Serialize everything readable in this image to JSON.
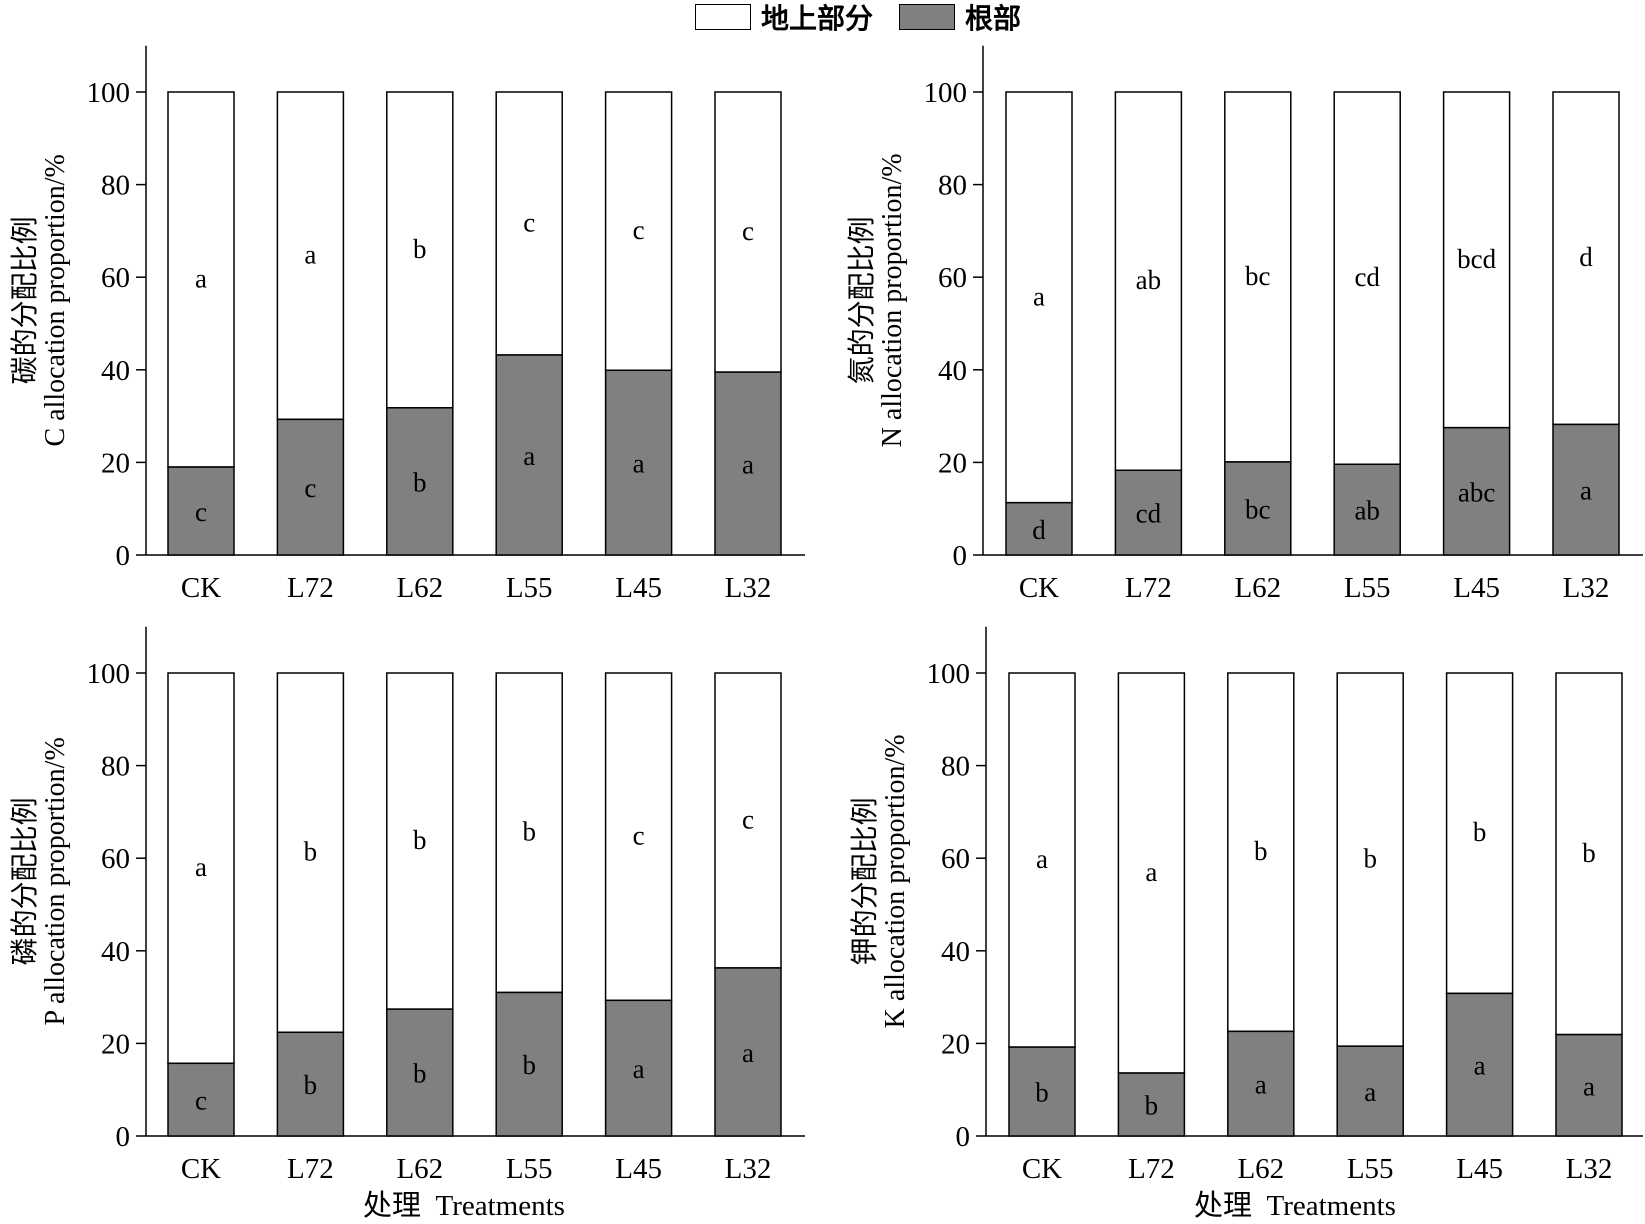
{
  "legend": {
    "aboveground_label": "地上部分",
    "root_label": "根部",
    "colors": {
      "aboveground": "#ffffff",
      "root": "#808080"
    }
  },
  "xtitle_cn": "处理",
  "xtitle_en": "Treatments",
  "chart_data": [
    {
      "type": "bar",
      "stacked": true,
      "ylabel_cn": "碳的分配比例",
      "ylabel_en": "C allocation proportion/%",
      "ylim": [
        0,
        110
      ],
      "yticks": [
        0,
        20,
        40,
        60,
        80,
        100
      ],
      "categories": [
        "CK",
        "L72",
        "L62",
        "L55",
        "L45",
        "L32"
      ],
      "series": [
        {
          "name": "根部",
          "values": [
            19,
            29.3,
            31.8,
            43.2,
            39.9,
            39.5
          ],
          "letters": [
            "c",
            "c",
            "b",
            "a",
            "a",
            "a"
          ]
        },
        {
          "name": "地上部分",
          "values": [
            81,
            70.7,
            68.2,
            56.8,
            60.1,
            60.5
          ],
          "letters": [
            "a",
            "a",
            "b",
            "c",
            "c",
            "c"
          ]
        }
      ]
    },
    {
      "type": "bar",
      "stacked": true,
      "ylabel_cn": "氮的分配比例",
      "ylabel_en": "N allocation proportion/%",
      "ylim": [
        0,
        110
      ],
      "yticks": [
        0,
        20,
        40,
        60,
        80,
        100
      ],
      "categories": [
        "CK",
        "L72",
        "L62",
        "L55",
        "L45",
        "L32"
      ],
      "series": [
        {
          "name": "根部",
          "values": [
            11.3,
            18.3,
            20.1,
            19.6,
            27.5,
            28.2
          ],
          "letters": [
            "d",
            "cd",
            "bc",
            "ab",
            "abc",
            "a"
          ]
        },
        {
          "name": "地上部分",
          "values": [
            88.7,
            81.7,
            79.9,
            80.4,
            72.5,
            71.8
          ],
          "letters": [
            "a",
            "ab",
            "bc",
            "cd",
            "bcd",
            "d"
          ]
        }
      ]
    },
    {
      "type": "bar",
      "stacked": true,
      "ylabel_cn": "磷的分配比例",
      "ylabel_en": "P allocation proportion/%",
      "ylim": [
        0,
        110
      ],
      "yticks": [
        0,
        20,
        40,
        60,
        80,
        100
      ],
      "categories": [
        "CK",
        "L72",
        "L62",
        "L55",
        "L45",
        "L32"
      ],
      "series": [
        {
          "name": "根部",
          "values": [
            15.7,
            22.4,
            27.4,
            31,
            29.3,
            36.3
          ],
          "letters": [
            "c",
            "b",
            "b",
            "b",
            "a",
            "a"
          ]
        },
        {
          "name": "地上部分",
          "values": [
            84.3,
            77.6,
            72.6,
            69,
            70.7,
            63.7
          ],
          "letters": [
            "a",
            "b",
            "b",
            "b",
            "c",
            "c"
          ]
        }
      ]
    },
    {
      "type": "bar",
      "stacked": true,
      "ylabel_cn": "钾的分配比例",
      "ylabel_en": "K allocation proportion/%",
      "ylim": [
        0,
        110
      ],
      "yticks": [
        0,
        20,
        40,
        60,
        80,
        100
      ],
      "categories": [
        "CK",
        "L72",
        "L62",
        "L55",
        "L45",
        "L32"
      ],
      "series": [
        {
          "name": "根部",
          "values": [
            19.2,
            13.6,
            22.6,
            19.4,
            30.8,
            21.9
          ],
          "letters": [
            "b",
            "b",
            "a",
            "a",
            "a",
            "a"
          ]
        },
        {
          "name": "地上部分",
          "values": [
            80.8,
            86.4,
            77.4,
            80.6,
            69.2,
            78.1
          ],
          "letters": [
            "a",
            "a",
            "b",
            "b",
            "b",
            "b"
          ]
        }
      ]
    }
  ]
}
